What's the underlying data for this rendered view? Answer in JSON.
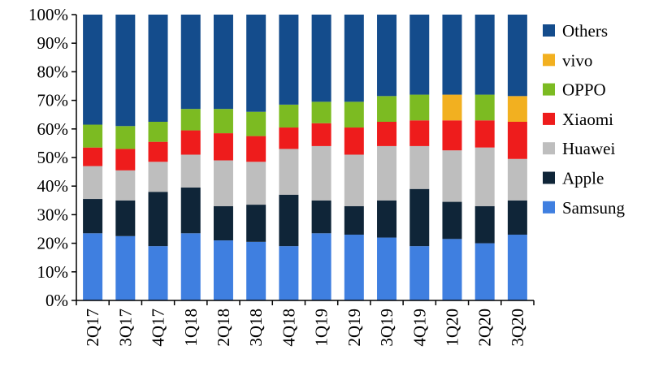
{
  "chart_data": {
    "type": "bar",
    "stacked": true,
    "percent": true,
    "categories": [
      "2Q17",
      "3Q17",
      "4Q17",
      "1Q18",
      "2Q18",
      "3Q18",
      "4Q18",
      "1Q19",
      "2Q19",
      "3Q19",
      "4Q19",
      "1Q20",
      "2Q20",
      "3Q20"
    ],
    "ylim": [
      0,
      100
    ],
    "yticks": [
      "0%",
      "10%",
      "20%",
      "30%",
      "40%",
      "50%",
      "60%",
      "70%",
      "80%",
      "90%",
      "100%"
    ],
    "legend_position": "right",
    "grid": false,
    "series": [
      {
        "name": "Samsung",
        "color": "#3F7FE0",
        "values": [
          23.5,
          22.5,
          19,
          23.5,
          21,
          20.5,
          19,
          23.5,
          23,
          22,
          19,
          21.5,
          20,
          23
        ]
      },
      {
        "name": "Apple",
        "color": "#0F2538",
        "values": [
          12,
          12.5,
          19,
          16,
          12,
          13,
          18,
          11.5,
          10,
          13,
          20,
          13,
          13,
          12
        ]
      },
      {
        "name": "Huawei",
        "color": "#BEBEBE",
        "values": [
          11.5,
          10.5,
          10.5,
          11.5,
          16,
          15,
          16,
          19,
          18,
          19,
          15,
          18,
          20.5,
          14.5
        ]
      },
      {
        "name": "Xiaomi",
        "color": "#EE1C1C",
        "values": [
          6.5,
          7.5,
          7,
          8.5,
          9.5,
          9,
          7.5,
          8,
          9.5,
          8.5,
          9,
          10.5,
          9.5,
          13
        ]
      },
      {
        "name": "OPPO",
        "color": "#7CBB22",
        "values": [
          8,
          8,
          7,
          7.5,
          8.5,
          8.5,
          8,
          7.5,
          9,
          9,
          9,
          0,
          9,
          0
        ]
      },
      {
        "name": "vivo",
        "color": "#F2B020",
        "values": [
          0,
          0,
          0,
          0,
          0,
          0,
          0,
          0,
          0,
          0,
          0,
          9,
          0,
          9
        ]
      },
      {
        "name": "Others",
        "color": "#144C8C",
        "values": [
          38.5,
          39,
          37.5,
          33,
          33,
          34,
          31.5,
          30.5,
          30.5,
          28.5,
          28,
          28,
          28,
          28.5
        ]
      }
    ],
    "legend_order": [
      "Others",
      "vivo",
      "OPPO",
      "Xiaomi",
      "Huawei",
      "Apple",
      "Samsung"
    ]
  }
}
